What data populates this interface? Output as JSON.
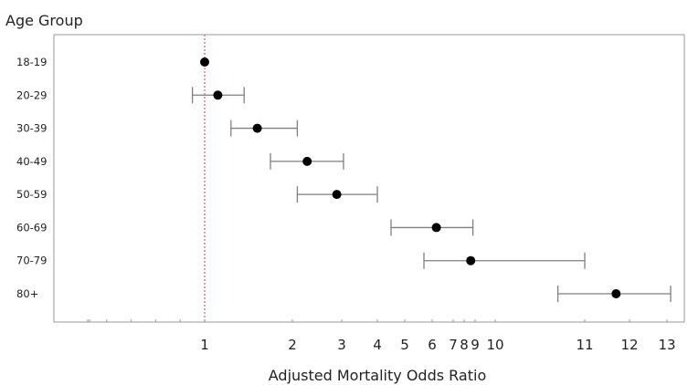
{
  "chart_data": {
    "type": "forest",
    "title": "",
    "xlabel": "Adjusted Mortality Odds Ratio",
    "ylabel": "Age Group",
    "x_tick_labels": [
      "1",
      "2",
      "3",
      "4",
      "5",
      "6",
      "7",
      "8",
      "9",
      "10",
      "11",
      "12",
      "13"
    ],
    "reference_line": 1,
    "categories": [
      "18-19",
      "20-29",
      "30-39",
      "40-49",
      "50-59",
      "60-69",
      "70-79",
      "80+"
    ],
    "estimates": [
      1.0,
      1.15,
      1.6,
      2.3,
      2.9,
      6.2,
      8.6,
      11.7
    ],
    "ci_lower": [
      null,
      0.95,
      1.3,
      1.75,
      2.1,
      4.5,
      5.7,
      10.7
    ],
    "ci_upper": [
      null,
      1.45,
      2.1,
      3.05,
      4.0,
      8.8,
      11.0,
      13.1
    ],
    "grid": false,
    "colors": {
      "marker": "#000000",
      "error_bar": "#7f7f7f",
      "reference": "#e06a7a",
      "frame": "#999999"
    }
  }
}
